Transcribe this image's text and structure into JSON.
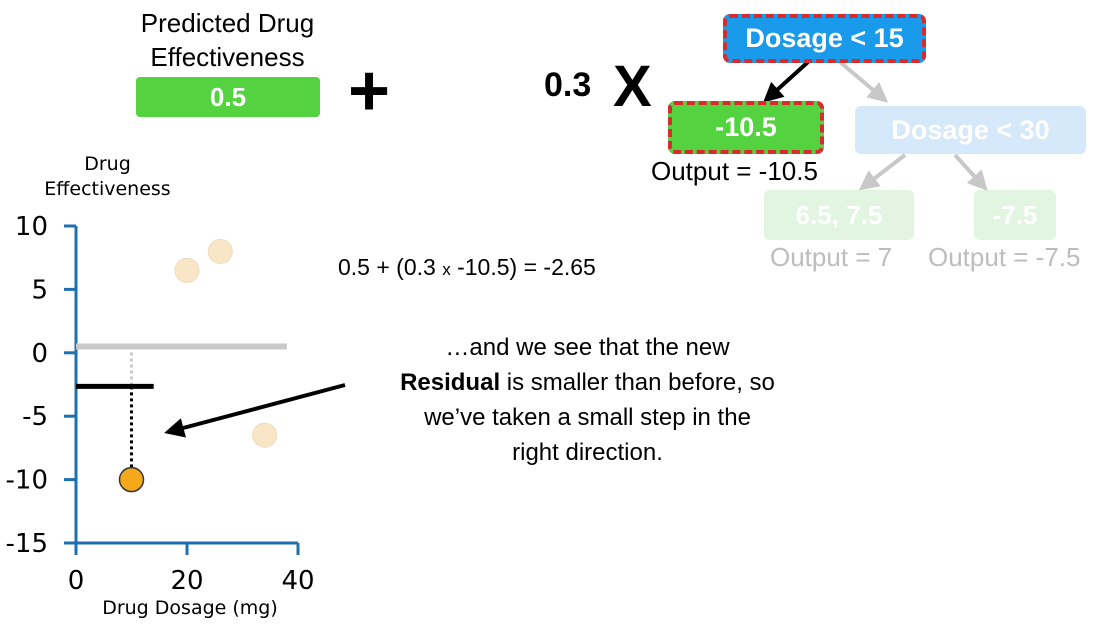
{
  "prediction": {
    "title_line1": "Predicted Drug",
    "title_line2": "Effectiveness",
    "value": "0.5"
  },
  "operators": {
    "plus": "+",
    "learning_rate": "0.3",
    "multiply": "X"
  },
  "tree": {
    "root": "Dosage < 15",
    "left_leaf": "-10.5",
    "left_output": "Output = -10.5",
    "right_node": "Dosage < 30",
    "right_left_leaf": "6.5, 7.5",
    "right_right_leaf": "-7.5",
    "right_left_output": "Output = 7",
    "right_right_output": "Output = -7.5"
  },
  "equation": {
    "part1": "0.5 + (0.3 ",
    "times": "x",
    "part2": " -10.5) = -2.65"
  },
  "note": {
    "line1": "…and we see that the new",
    "bold": "Residual",
    "line2_rest": " is smaller than before, so",
    "line3": "we’ve taken a small step in the",
    "line4": "right direction."
  },
  "chart_data": {
    "type": "scatter",
    "xlabel": "Drug Dosage (mg)",
    "ylabel": "Drug Effectiveness",
    "xlim": [
      0,
      40
    ],
    "ylim": [
      -15,
      10
    ],
    "x_ticks": [
      "0",
      "20",
      "40"
    ],
    "y_ticks": [
      "10",
      "5",
      "0",
      "-5",
      "-10",
      "-15"
    ],
    "points": [
      {
        "x": 20,
        "y": 6.5,
        "highlight": false
      },
      {
        "x": 26,
        "y": 8,
        "highlight": false
      },
      {
        "x": 34,
        "y": -6.5,
        "highlight": false
      },
      {
        "x": 10,
        "y": -10,
        "highlight": true
      }
    ],
    "reference_lines": [
      {
        "y": 0.5,
        "x_start": 0,
        "x_end": 38,
        "color": "#c8c8c8"
      },
      {
        "y": -2.65,
        "x_start": 0,
        "x_end": 14,
        "color": "#000000"
      }
    ],
    "colors": {
      "axis": "#1f6fb0",
      "point": "#f8e6c7",
      "highlight": "#f5a91a"
    }
  }
}
